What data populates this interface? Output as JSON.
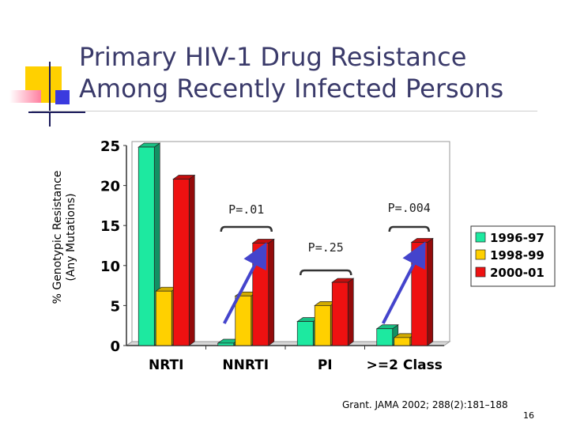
{
  "slide": {
    "title_line1": "Primary HIV-1 Drug Resistance",
    "title_line2": "Among Recently Infected Persons",
    "ylabel_line1": "% Genotypic Resistance",
    "ylabel_line2": "(Any Mutations)",
    "citation": "Grant. JAMA 2002; 288(2):181–188",
    "page_number": "16"
  },
  "chart_data": {
    "type": "bar",
    "title": "Primary HIV-1 Drug Resistance Among Recently Infected Persons",
    "xlabel": "",
    "ylabel": "% Genotypic Resistance (Any Mutations)",
    "ylim": [
      0,
      25
    ],
    "yticks": [
      "0",
      "5",
      "10",
      "15",
      "20",
      "25"
    ],
    "categories": [
      "NRTI",
      "NNRTI",
      "PI",
      ">=2 Class"
    ],
    "series": [
      {
        "name": "1996-97",
        "color": "#1de9a0",
        "values": [
          24.8,
          0.3,
          3.0,
          2.1
        ]
      },
      {
        "name": "1998-99",
        "color": "#ffd000",
        "values": [
          6.8,
          6.2,
          5.0,
          1.0
        ]
      },
      {
        "name": "2000-01",
        "color": "#ee1111",
        "values": [
          20.8,
          12.8,
          7.9,
          12.9
        ]
      }
    ],
    "legend_position": "right",
    "annotations": [
      {
        "label": "P=.01",
        "category": "NNRTI"
      },
      {
        "label": "P=.25",
        "category": "PI"
      },
      {
        "label": "P=.004",
        "category": ">=2 Class"
      }
    ],
    "trend_arrows": [
      {
        "category": "NNRTI",
        "from": "1996-97",
        "to": "2000-01",
        "color": "#4444cc"
      },
      {
        "category": ">=2 Class",
        "from": "1996-97",
        "to": "2000-01",
        "color": "#4444cc"
      }
    ]
  }
}
